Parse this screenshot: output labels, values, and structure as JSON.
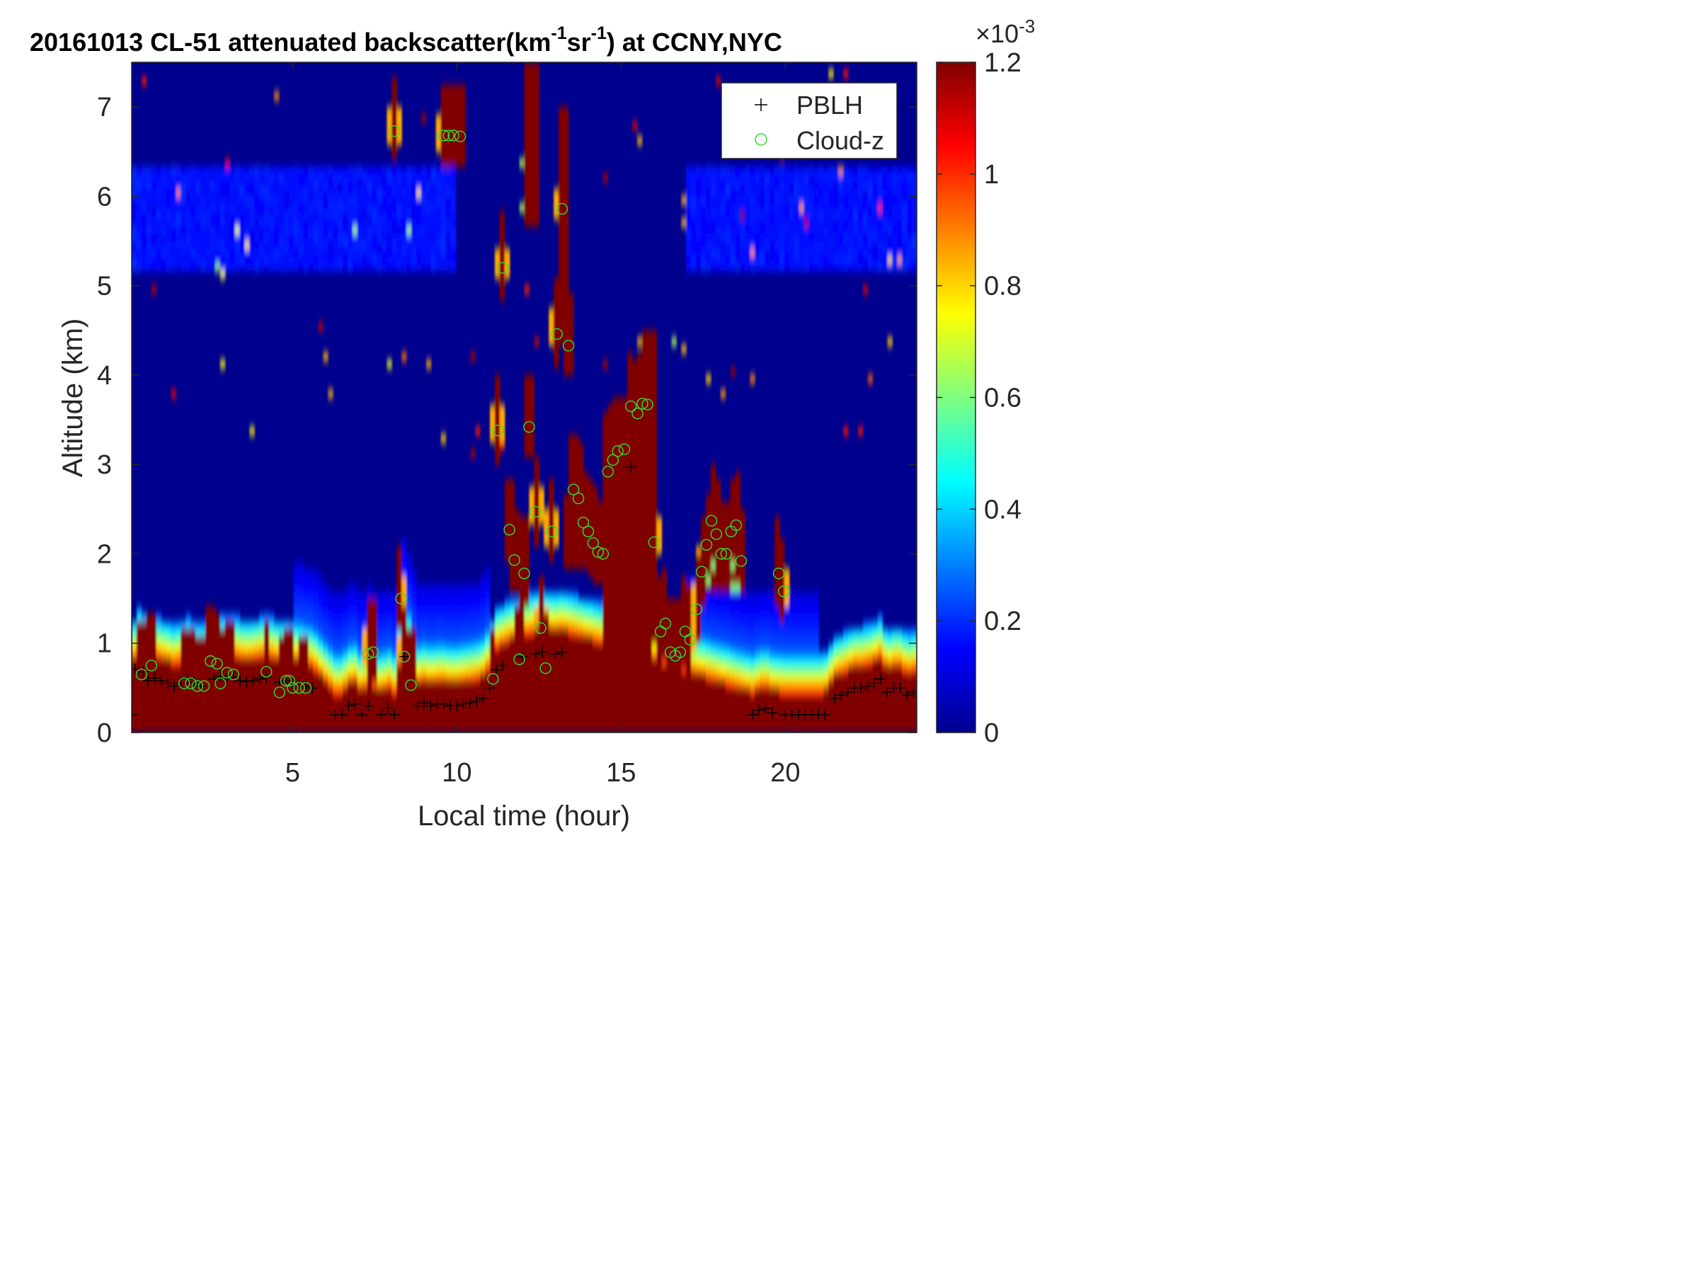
{
  "chart_data": {
    "type": "heatmap",
    "title": "20161013  CL-51 attenuated backscatter(km",
    "title_sup1": "-1",
    "title_mid": "sr",
    "title_sup2": "-1",
    "title_end": ") at CCNY,NYC",
    "xlabel": "Local time (hour)",
    "ylabel": "Altitude (km)",
    "xlim": [
      0.1,
      24
    ],
    "ylim": [
      0,
      7.5
    ],
    "xticks": [
      5,
      10,
      15,
      20
    ],
    "yticks": [
      0,
      1,
      2,
      3,
      4,
      5,
      6,
      7
    ],
    "colorbar": {
      "min": 0,
      "max": 1.2,
      "ticks": [
        0,
        0.2,
        0.4,
        0.6,
        0.8,
        1,
        1.2
      ],
      "exponent_base": "×10",
      "exponent_power": "-3",
      "colormap": "jet"
    },
    "legend": {
      "position": "top-right",
      "items": [
        {
          "label": "PBLH",
          "marker": "+",
          "color": "#000000"
        },
        {
          "label": "Cloud-z",
          "marker": "o",
          "color": "#33dd33"
        }
      ]
    },
    "pblh_points": [
      [
        0.1,
        0.2
      ],
      [
        0.2,
        0.71
      ],
      [
        0.45,
        0.68
      ],
      [
        0.6,
        0.58
      ],
      [
        0.8,
        0.61
      ],
      [
        1.0,
        0.58
      ],
      [
        1.2,
        0.55
      ],
      [
        1.4,
        0.52
      ],
      [
        1.6,
        0.55
      ],
      [
        1.8,
        0.6
      ],
      [
        2.0,
        0.56
      ],
      [
        2.2,
        0.52
      ],
      [
        2.6,
        0.6
      ],
      [
        2.8,
        0.63
      ],
      [
        3.0,
        0.6
      ],
      [
        3.2,
        0.62
      ],
      [
        3.4,
        0.58
      ],
      [
        3.6,
        0.57
      ],
      [
        3.8,
        0.58
      ],
      [
        4.0,
        0.6
      ],
      [
        4.2,
        0.62
      ],
      [
        4.6,
        0.56
      ],
      [
        4.8,
        0.58
      ],
      [
        5.0,
        0.55
      ],
      [
        5.2,
        0.55
      ],
      [
        5.4,
        0.52
      ],
      [
        5.6,
        0.5
      ],
      [
        6.3,
        0.2
      ],
      [
        6.5,
        0.2
      ],
      [
        6.7,
        0.3
      ],
      [
        6.9,
        0.32
      ],
      [
        7.1,
        0.2
      ],
      [
        7.3,
        0.3
      ],
      [
        7.7,
        0.2
      ],
      [
        7.9,
        0.28
      ],
      [
        8.1,
        0.2
      ],
      [
        8.4,
        0.85
      ],
      [
        8.8,
        0.3
      ],
      [
        9.0,
        0.33
      ],
      [
        9.2,
        0.3
      ],
      [
        9.4,
        0.32
      ],
      [
        9.6,
        0.32
      ],
      [
        9.8,
        0.3
      ],
      [
        10.0,
        0.3
      ],
      [
        10.2,
        0.32
      ],
      [
        10.4,
        0.33
      ],
      [
        10.6,
        0.35
      ],
      [
        10.8,
        0.38
      ],
      [
        11.0,
        0.5
      ],
      [
        11.2,
        0.7
      ],
      [
        11.4,
        0.75
      ],
      [
        12.0,
        0.85
      ],
      [
        12.4,
        0.88
      ],
      [
        12.6,
        0.9
      ],
      [
        13.0,
        0.88
      ],
      [
        13.2,
        0.9
      ],
      [
        15.3,
        2.97
      ],
      [
        19.0,
        0.2
      ],
      [
        19.2,
        0.25
      ],
      [
        19.4,
        0.27
      ],
      [
        19.6,
        0.22
      ],
      [
        20.0,
        0.2
      ],
      [
        20.2,
        0.2
      ],
      [
        20.4,
        0.2
      ],
      [
        20.6,
        0.2
      ],
      [
        20.8,
        0.2
      ],
      [
        21.0,
        0.2
      ],
      [
        21.2,
        0.2
      ],
      [
        21.5,
        0.38
      ],
      [
        21.7,
        0.42
      ],
      [
        21.9,
        0.45
      ],
      [
        22.1,
        0.5
      ],
      [
        22.3,
        0.5
      ],
      [
        22.5,
        0.52
      ],
      [
        22.7,
        0.55
      ],
      [
        22.9,
        0.6
      ],
      [
        23.1,
        0.45
      ],
      [
        23.3,
        0.5
      ],
      [
        23.5,
        0.5
      ],
      [
        23.7,
        0.42
      ],
      [
        23.9,
        0.45
      ],
      [
        24.0,
        0.45
      ]
    ],
    "cloud_points": [
      [
        0.4,
        0.65
      ],
      [
        0.7,
        0.75
      ],
      [
        1.7,
        0.55
      ],
      [
        1.9,
        0.55
      ],
      [
        2.1,
        0.52
      ],
      [
        2.3,
        0.52
      ],
      [
        2.5,
        0.8
      ],
      [
        2.7,
        0.77
      ],
      [
        2.8,
        0.55
      ],
      [
        3.0,
        0.67
      ],
      [
        3.2,
        0.65
      ],
      [
        4.2,
        0.68
      ],
      [
        4.6,
        0.45
      ],
      [
        4.8,
        0.58
      ],
      [
        4.9,
        0.58
      ],
      [
        5.0,
        0.5
      ],
      [
        5.2,
        0.5
      ],
      [
        5.4,
        0.5
      ],
      [
        7.3,
        0.88
      ],
      [
        7.45,
        0.9
      ],
      [
        8.1,
        6.73
      ],
      [
        8.3,
        1.5
      ],
      [
        8.4,
        0.85
      ],
      [
        8.6,
        0.53
      ],
      [
        9.6,
        6.68
      ],
      [
        9.75,
        6.68
      ],
      [
        9.9,
        6.68
      ],
      [
        10.1,
        6.67
      ],
      [
        11.1,
        0.6
      ],
      [
        11.25,
        3.38
      ],
      [
        11.4,
        5.2
      ],
      [
        11.6,
        2.27
      ],
      [
        11.75,
        1.93
      ],
      [
        11.9,
        0.82
      ],
      [
        12.05,
        1.78
      ],
      [
        12.2,
        3.42
      ],
      [
        12.4,
        2.47
      ],
      [
        12.55,
        1.17
      ],
      [
        12.7,
        0.72
      ],
      [
        12.9,
        2.25
      ],
      [
        13.05,
        4.46
      ],
      [
        13.2,
        5.86
      ],
      [
        13.4,
        4.33
      ],
      [
        13.55,
        2.72
      ],
      [
        13.7,
        2.62
      ],
      [
        13.85,
        2.35
      ],
      [
        14.0,
        2.25
      ],
      [
        14.15,
        2.12
      ],
      [
        14.3,
        2.02
      ],
      [
        14.45,
        2.0
      ],
      [
        14.6,
        2.92
      ],
      [
        14.75,
        3.05
      ],
      [
        14.9,
        3.15
      ],
      [
        15.1,
        3.17
      ],
      [
        15.3,
        3.65
      ],
      [
        15.5,
        3.57
      ],
      [
        15.65,
        3.68
      ],
      [
        15.8,
        3.67
      ],
      [
        16.0,
        2.13
      ],
      [
        16.2,
        1.13
      ],
      [
        16.35,
        1.22
      ],
      [
        16.5,
        0.9
      ],
      [
        16.65,
        0.86
      ],
      [
        16.8,
        0.9
      ],
      [
        16.95,
        1.13
      ],
      [
        17.1,
        1.04
      ],
      [
        17.3,
        1.38
      ],
      [
        17.45,
        1.8
      ],
      [
        17.6,
        2.1
      ],
      [
        17.75,
        2.37
      ],
      [
        17.9,
        2.22
      ],
      [
        18.05,
        2.0
      ],
      [
        18.2,
        2.0
      ],
      [
        18.35,
        2.25
      ],
      [
        18.5,
        2.32
      ],
      [
        18.65,
        1.92
      ],
      [
        19.8,
        1.78
      ],
      [
        19.95,
        1.58
      ]
    ]
  }
}
